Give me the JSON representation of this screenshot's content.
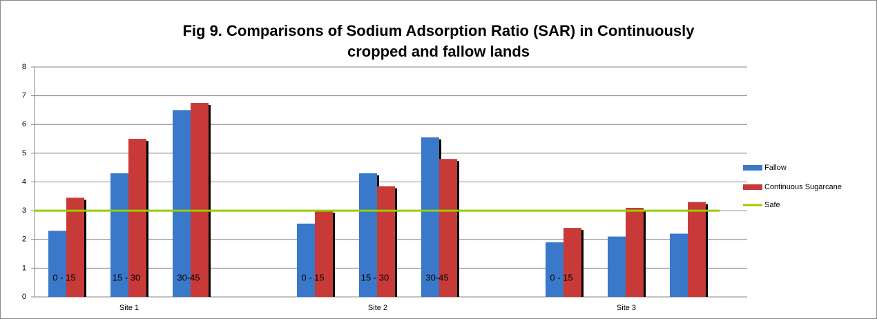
{
  "chart_data": {
    "type": "bar",
    "title": [
      "Fig 9. Comparisons of Sodium Adsorption Ratio (SAR) in Continuously",
      "cropped and fallow lands"
    ],
    "group_labels": [
      "Site 1",
      "Site 2",
      "Site 3"
    ],
    "categories": [
      "0 - 15",
      "15 - 30",
      "30-45",
      null,
      "0 - 15",
      "15 - 30",
      "30-45",
      null,
      "0 - 15",
      null,
      null
    ],
    "series": [
      {
        "name": "Fallow",
        "color": "#3a78c9",
        "values": [
          2.3,
          4.3,
          6.5,
          null,
          2.55,
          4.3,
          5.55,
          null,
          1.9,
          2.1,
          2.2
        ]
      },
      {
        "name": "Continuous Sugarcane",
        "color": "#c83a38",
        "values": [
          3.45,
          5.5,
          6.75,
          null,
          3.0,
          3.85,
          4.8,
          null,
          2.4,
          3.1,
          3.3
        ]
      },
      {
        "name": "Safe",
        "color": "#99cc00",
        "value": 3
      }
    ],
    "ylim": [
      0,
      8
    ],
    "yticks": [
      0,
      1,
      2,
      3,
      4,
      5,
      6,
      7,
      8
    ],
    "grid": true,
    "legend": "right"
  }
}
